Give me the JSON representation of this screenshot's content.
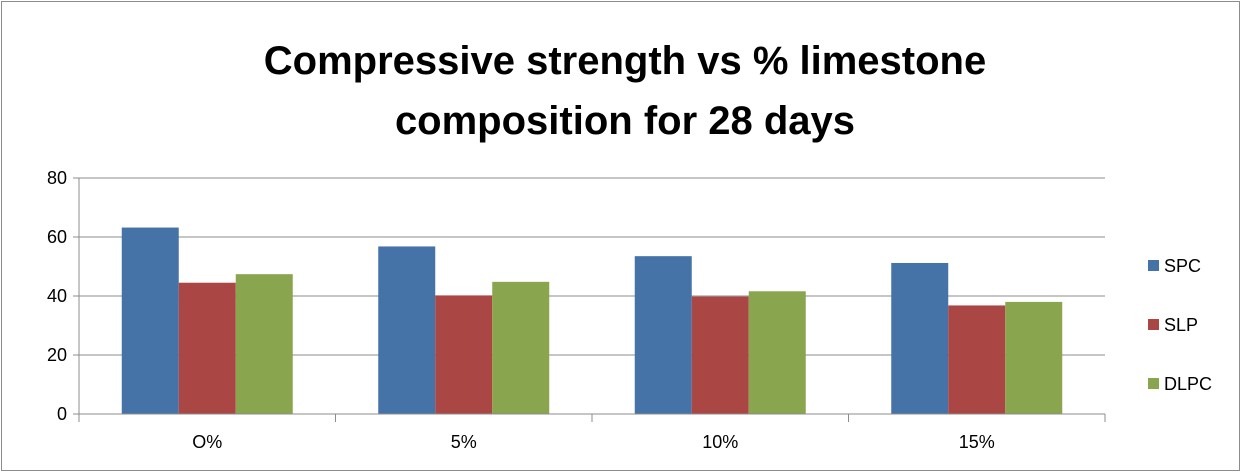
{
  "chart_data": {
    "type": "bar",
    "title_lines": [
      "Compressive strength vs % limestone",
      "composition for 28 days"
    ],
    "categories": [
      "O%",
      "5%",
      "10%",
      "15%"
    ],
    "series": [
      {
        "name": "SPC",
        "color": "#4572a7",
        "values": [
          63.2,
          56.8,
          53.5,
          51.2
        ]
      },
      {
        "name": "SLP",
        "color": "#aa4643",
        "values": [
          44.5,
          40.2,
          39.8,
          36.8
        ]
      },
      {
        "name": "DLPC",
        "color": "#89a54e",
        "values": [
          47.4,
          44.8,
          41.6,
          38.0
        ]
      }
    ],
    "ylim": [
      0,
      80
    ],
    "yticks": [
      0,
      20,
      40,
      60,
      80
    ],
    "grid": true,
    "legend_position": "right"
  }
}
